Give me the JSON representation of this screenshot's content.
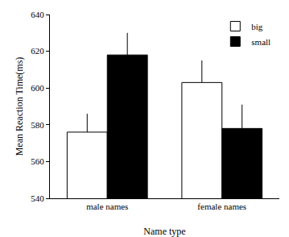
{
  "chart_data": {
    "type": "bar",
    "x_label": "Name type",
    "y_label": "Mean Reaction Time(ms)",
    "categories": [
      "male names",
      "female names"
    ],
    "series": [
      {
        "name": "big",
        "color": "#ffffff",
        "values": [
          576,
          603
        ],
        "errors": [
          10,
          12
        ]
      },
      {
        "name": "small",
        "color": "#000000",
        "values": [
          618,
          578
        ],
        "errors": [
          12,
          13
        ]
      }
    ],
    "ylim": [
      540,
      640
    ],
    "yticks": [
      540,
      560,
      580,
      600,
      620,
      640
    ],
    "grid": false,
    "legend": "top right"
  }
}
